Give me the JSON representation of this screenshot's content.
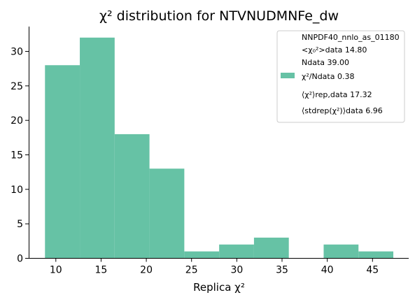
{
  "chart_data": {
    "type": "bar",
    "title": "χ² distribution for NTVNUDMNFe_dw",
    "xlabel": "Replica χ²",
    "ylabel": "",
    "xlim": [
      7.0,
      49.0
    ],
    "ylim": [
      0,
      33.6
    ],
    "xticks": [
      10,
      15,
      20,
      25,
      30,
      35,
      40,
      45
    ],
    "yticks": [
      0,
      5,
      10,
      15,
      20,
      25,
      30
    ],
    "bin_edges": [
      8.8,
      12.65,
      16.5,
      20.35,
      24.2,
      28.05,
      31.9,
      35.75,
      39.6,
      43.45,
      47.3
    ],
    "counts": [
      28,
      32,
      18,
      13,
      1,
      2,
      3,
      0,
      2,
      1
    ],
    "bar_color": "#66c2a5",
    "grid": false,
    "legend_placement": "top-right",
    "legend": {
      "title": "NNPDF40_nnlo_as_01180",
      "lines": [
        "<χ₀²>data 14.80",
        "Ndata 39.00",
        "χ²/Ndata 0.38",
        "⟨χ²⟩rep,data 17.32",
        "⟨stdrep(χ²)⟩data 6.96"
      ]
    }
  }
}
